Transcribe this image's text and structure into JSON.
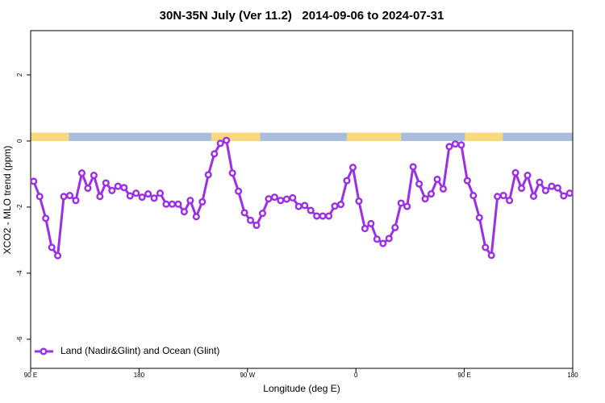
{
  "chart_data": {
    "type": "line",
    "title": "30N-35N July (Ver 11.2)   2014-09-06 to 2024-07-31",
    "xlabel": "Longitude (deg E)",
    "ylabel": "XCO2 - MLO trend (ppm)",
    "xlim": [
      90,
      540
    ],
    "ylim": [
      -6.88,
      3.34
    ],
    "xticks": [
      {
        "value": 90,
        "label": "90 E"
      },
      180,
      {
        "value": 270,
        "label": "90 W"
      },
      {
        "value": 360,
        "label": "0"
      },
      {
        "value": 450,
        "label": "90 E"
      },
      {
        "value": 540,
        "label": "180"
      }
    ],
    "yticks": [
      -6,
      -4,
      -2,
      0,
      2
    ],
    "legend": "bottom-left",
    "x": [
      92.5,
      97.5,
      102.5,
      107.5,
      112.5,
      117.5,
      122.5,
      127.5,
      132.5,
      137.5,
      142.5,
      147.5,
      152.5,
      157.5,
      162.5,
      167.5,
      172.5,
      177.5,
      182.5,
      187.5,
      192.5,
      197.5,
      202.5,
      207.5,
      212.5,
      217.5,
      222.5,
      227.5,
      232.5,
      237.5,
      242.5,
      247.5,
      252.5,
      257.5,
      262.5,
      267.5,
      272.5,
      277.5,
      282.5,
      287.5,
      292.5,
      297.5,
      302.5,
      307.5,
      312.5,
      317.5,
      322.5,
      327.5,
      332.5,
      337.5,
      342.5,
      347.5,
      352.5,
      357.5,
      362.5,
      367.5,
      372.5,
      377.5,
      382.5,
      387.5,
      392.5,
      397.5,
      402.5,
      407.5,
      412.5,
      417.5,
      422.5,
      427.5,
      432.5,
      437.5,
      442.5,
      447.5,
      452.5,
      457.5,
      462.5,
      467.5,
      472.5,
      477.5,
      482.5,
      487.5,
      492.5,
      497.5,
      502.5,
      507.5,
      512.5,
      517.5,
      522.5,
      527.5,
      532.5,
      537.5
    ],
    "series": [
      {
        "name": "Land (Nadir&Glint) and Ocean (Glint)",
        "color": "#9b30e6",
        "values": [
          -1.22,
          -1.68,
          -2.34,
          -3.22,
          -3.47,
          -1.68,
          -1.65,
          -1.8,
          -0.97,
          -1.43,
          -1.04,
          -1.68,
          -1.27,
          -1.5,
          -1.37,
          -1.41,
          -1.66,
          -1.58,
          -1.7,
          -1.6,
          -1.73,
          -1.58,
          -1.91,
          -1.91,
          -1.91,
          -2.14,
          -1.8,
          -2.29,
          -1.84,
          -1.02,
          -0.39,
          -0.07,
          0.02,
          -0.97,
          -1.52,
          -2.17,
          -2.4,
          -2.55,
          -2.19,
          -1.75,
          -1.7,
          -1.8,
          -1.76,
          -1.72,
          -1.98,
          -1.95,
          -2.1,
          -2.27,
          -2.27,
          -2.27,
          -1.97,
          -1.92,
          -1.2,
          -0.8,
          -1.82,
          -2.65,
          -2.5,
          -2.97,
          -3.1,
          -2.95,
          -2.62,
          -1.88,
          -1.98,
          -0.78,
          -1.3,
          -1.75,
          -1.6,
          -1.16,
          -1.45,
          -0.17,
          -0.09,
          -0.12,
          -1.2,
          -1.65,
          -2.32,
          -3.22,
          -3.46,
          -1.68,
          -1.65,
          -1.8,
          -0.96,
          -1.43,
          -1.04,
          -1.67,
          -1.25,
          -1.5,
          -1.37,
          -1.42,
          -1.66,
          -1.58
        ]
      }
    ],
    "land_band": {
      "ylim": [
        0,
        0.25
      ],
      "land_color": "#f9d87e",
      "ocean_color": "#a8bedc",
      "land": [
        [
          90,
          121.6
        ],
        [
          240,
          280.5
        ],
        [
          352.5,
          397.5
        ],
        [
          450.5,
          482
        ]
      ]
    }
  }
}
